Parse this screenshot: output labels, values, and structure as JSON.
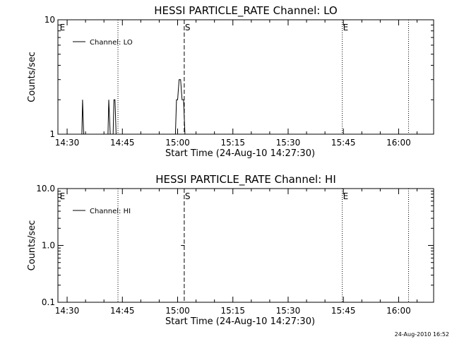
{
  "footer_timestamp": "24-Aug-2010 16:52",
  "chart_data": [
    {
      "type": "line",
      "title": "HESSI PARTICLE_RATE Channel: LO",
      "xlabel": "Start Time (24-Aug-10 14:27:30)",
      "ylabel": "Counts/sec",
      "y_scale": "log",
      "xlim_min": [
        0,
        102
      ],
      "ylim": [
        1,
        10
      ],
      "x_ticks": [
        {
          "label": "14:30",
          "min": 2.5
        },
        {
          "label": "14:45",
          "min": 17.5
        },
        {
          "label": "15:00",
          "min": 32.5
        },
        {
          "label": "15:15",
          "min": 47.5
        },
        {
          "label": "15:30",
          "min": 62.5
        },
        {
          "label": "15:45",
          "min": 77.5
        },
        {
          "label": "16:00",
          "min": 92.5
        }
      ],
      "y_ticks": [
        {
          "label": "1",
          "value": 1
        },
        {
          "label": "10",
          "value": 10
        }
      ],
      "legend": {
        "label": "Channel: LO",
        "position": "top-left"
      },
      "series": [
        {
          "name": "Channel: LO",
          "x": [
            6.5,
            6.7,
            7.0,
            7.3,
            7.5,
            13.6,
            13.8,
            14.2,
            14.4,
            15.0,
            15.2,
            15.5,
            15.8,
            16.0,
            31.9,
            32.2,
            32.5,
            32.9,
            33.3,
            33.7,
            34.1,
            34.5,
            34.8
          ],
          "y": [
            1,
            2,
            1,
            1,
            1,
            1,
            2,
            1,
            1,
            1,
            2,
            2,
            1,
            1,
            1,
            2,
            2,
            3,
            3,
            2,
            2,
            1,
            1
          ]
        }
      ],
      "markers": [
        {
          "x": 0.3,
          "label": "E",
          "style": "none"
        },
        {
          "x": 16.3,
          "label": "",
          "style": "dotted"
        },
        {
          "x": 34.3,
          "label": "S",
          "style": "dashed"
        },
        {
          "x": 77.2,
          "label": "E",
          "style": "dotted"
        },
        {
          "x": 95.2,
          "label": "",
          "style": "dotted"
        }
      ]
    },
    {
      "type": "line",
      "title": "HESSI PARTICLE_RATE Channel: HI",
      "xlabel": "Start Time (24-Aug-10 14:27:30)",
      "ylabel": "Counts/sec",
      "y_scale": "log",
      "xlim_min": [
        0,
        102
      ],
      "ylim": [
        0.1,
        10
      ],
      "x_ticks": [
        {
          "label": "14:30",
          "min": 2.5
        },
        {
          "label": "14:45",
          "min": 17.5
        },
        {
          "label": "15:00",
          "min": 32.5
        },
        {
          "label": "15:15",
          "min": 47.5
        },
        {
          "label": "15:30",
          "min": 62.5
        },
        {
          "label": "15:45",
          "min": 77.5
        },
        {
          "label": "16:00",
          "min": 92.5
        }
      ],
      "y_ticks": [
        {
          "label": "0.1",
          "value": 0.1
        },
        {
          "label": "1.0",
          "value": 1
        },
        {
          "label": "10.0",
          "value": 10
        }
      ],
      "legend": {
        "label": "Channel: HI",
        "position": "top-left"
      },
      "series": [
        {
          "name": "Channel: HI",
          "x": [
            33.4,
            34.4
          ],
          "y": [
            1,
            1
          ]
        }
      ],
      "markers": [
        {
          "x": 0.3,
          "label": "E",
          "style": "none"
        },
        {
          "x": 16.3,
          "label": "",
          "style": "dotted"
        },
        {
          "x": 34.3,
          "label": "S",
          "style": "dashed"
        },
        {
          "x": 77.2,
          "label": "E",
          "style": "dotted"
        },
        {
          "x": 95.2,
          "label": "",
          "style": "dotted"
        }
      ]
    }
  ]
}
